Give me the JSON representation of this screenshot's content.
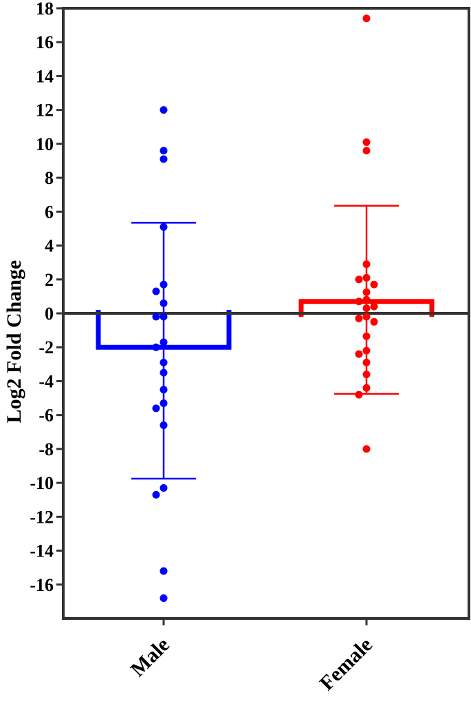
{
  "chart_data": {
    "type": "bar",
    "title": "",
    "xlabel": "",
    "ylabel": "Log2 Fold Change",
    "ylim": [
      -18,
      18
    ],
    "yticks": [
      18,
      16,
      14,
      12,
      10,
      8,
      6,
      4,
      2,
      0,
      -2,
      -4,
      -6,
      -8,
      -10,
      -12,
      -14,
      -16
    ],
    "grid": false,
    "categories": [
      "Male",
      "Female"
    ],
    "series": [
      {
        "category": "Male",
        "color": "#0000ff",
        "mean": -2.0,
        "error_upper": 5.35,
        "error_lower": -9.75,
        "points": [
          12.0,
          9.6,
          9.1,
          5.1,
          1.7,
          1.3,
          0.6,
          -0.2,
          -0.2,
          -1.7,
          -2.0,
          -2.9,
          -3.5,
          -4.5,
          -5.3,
          -5.6,
          -6.6,
          -10.3,
          -10.7,
          -15.2,
          -16.8
        ]
      },
      {
        "category": "Female",
        "color": "#ff0000",
        "mean": 0.7,
        "error_upper": 6.35,
        "error_lower": -4.75,
        "points": [
          17.4,
          10.1,
          9.6,
          2.9,
          2.1,
          2.0,
          1.7,
          1.25,
          0.8,
          0.7,
          0.4,
          0.3,
          -0.2,
          -0.3,
          -0.5,
          -1.35,
          -2.2,
          -2.4,
          -2.9,
          -3.6,
          -4.4,
          -4.8,
          -8.0
        ]
      }
    ]
  }
}
